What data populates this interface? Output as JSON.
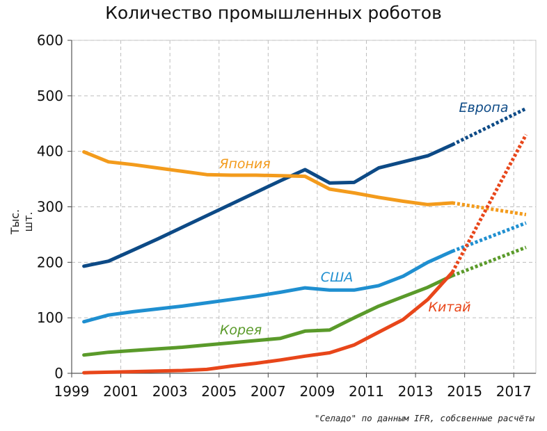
{
  "chart_data": {
    "type": "line",
    "title": "Количество промышленных роботов",
    "ylabel": "Тыс. шт.",
    "xlabel": "",
    "xlim": [
      1999,
      2017.9
    ],
    "ylim": [
      0,
      600
    ],
    "x_ticks": [
      "1999",
      "2001",
      "2003",
      "2005",
      "2007",
      "2009",
      "2011",
      "2013",
      "2015",
      "2017"
    ],
    "y_ticks": [
      "0",
      "100",
      "200",
      "300",
      "400",
      "500",
      "600"
    ],
    "grid": true,
    "legend": "inline labels",
    "source": "\"Селадо\" по данным IFR, собсвенные расчёты",
    "series": [
      {
        "name": "Европа",
        "color": "#0d4a86",
        "label_color": "#0d4a86",
        "x": [
          1999.5,
          2000.5,
          2001.5,
          2002.5,
          2003.5,
          2004.5,
          2005.5,
          2006.5,
          2007.5,
          2008.5,
          2009.5,
          2010.5,
          2011.5,
          2012.5,
          2013.5,
          2014.5
        ],
        "values": [
          193,
          202,
          222,
          242,
          263,
          284,
          305,
          326,
          347,
          367,
          343,
          344,
          370,
          381,
          392,
          412
        ],
        "forecast_x": [
          2014.5,
          2017.5
        ],
        "forecast_values": [
          412,
          477
        ]
      },
      {
        "name": "Япония",
        "color": "#f39b1c",
        "label_color": "#f39b1c",
        "x": [
          1999.5,
          2000.5,
          2001.5,
          2002.5,
          2003.5,
          2004.5,
          2005.5,
          2006.5,
          2007.5,
          2008.5,
          2009.5,
          2010.5,
          2011.5,
          2012.5,
          2013.5,
          2014.5
        ],
        "values": [
          399,
          381,
          376,
          370,
          364,
          358,
          357,
          357,
          356,
          355,
          332,
          325,
          317,
          310,
          304,
          307
        ],
        "forecast_x": [
          2014.5,
          2017.5
        ],
        "forecast_values": [
          307,
          286
        ]
      },
      {
        "name": "США",
        "color": "#1f8fd0",
        "label_color": "#1f8fd0",
        "x": [
          1999.5,
          2000.5,
          2001.5,
          2002.5,
          2003.5,
          2004.5,
          2005.5,
          2006.5,
          2007.5,
          2008.5,
          2009.5,
          2010.5,
          2011.5,
          2012.5,
          2013.5,
          2014.5
        ],
        "values": [
          93,
          105,
          111,
          116,
          121,
          127,
          133,
          139,
          146,
          154,
          150,
          150,
          158,
          175,
          200,
          220
        ],
        "forecast_x": [
          2014.5,
          2017.5
        ],
        "forecast_values": [
          220,
          271
        ]
      },
      {
        "name": "Корея",
        "color": "#5a9a2a",
        "label_color": "#5a9a2a",
        "x": [
          1999.5,
          2000.5,
          2001.5,
          2002.5,
          2003.5,
          2004.5,
          2005.5,
          2006.5,
          2007.5,
          2008.5,
          2009.5,
          2010.5,
          2011.5,
          2012.5,
          2013.5,
          2014.5
        ],
        "values": [
          33,
          38,
          41,
          44,
          47,
          51,
          55,
          59,
          63,
          76,
          78,
          100,
          121,
          138,
          155,
          176
        ],
        "forecast_x": [
          2014.5,
          2017.5
        ],
        "forecast_values": [
          176,
          227
        ]
      },
      {
        "name": "Китай",
        "color": "#e8461a",
        "label_color": "#e8461a",
        "x": [
          1999.5,
          2000.5,
          2001.5,
          2002.5,
          2003.5,
          2004.5,
          2005.5,
          2006.5,
          2007.5,
          2008.5,
          2009.5,
          2010.5,
          2011.5,
          2012.5,
          2013.5,
          2014.5
        ],
        "values": [
          1,
          2,
          3,
          4,
          5,
          7,
          13,
          18,
          24,
          31,
          37,
          51,
          74,
          97,
          133,
          182
        ],
        "forecast_x": [
          2014.5,
          2017.5
        ],
        "forecast_values": [
          182,
          430
        ]
      }
    ]
  }
}
